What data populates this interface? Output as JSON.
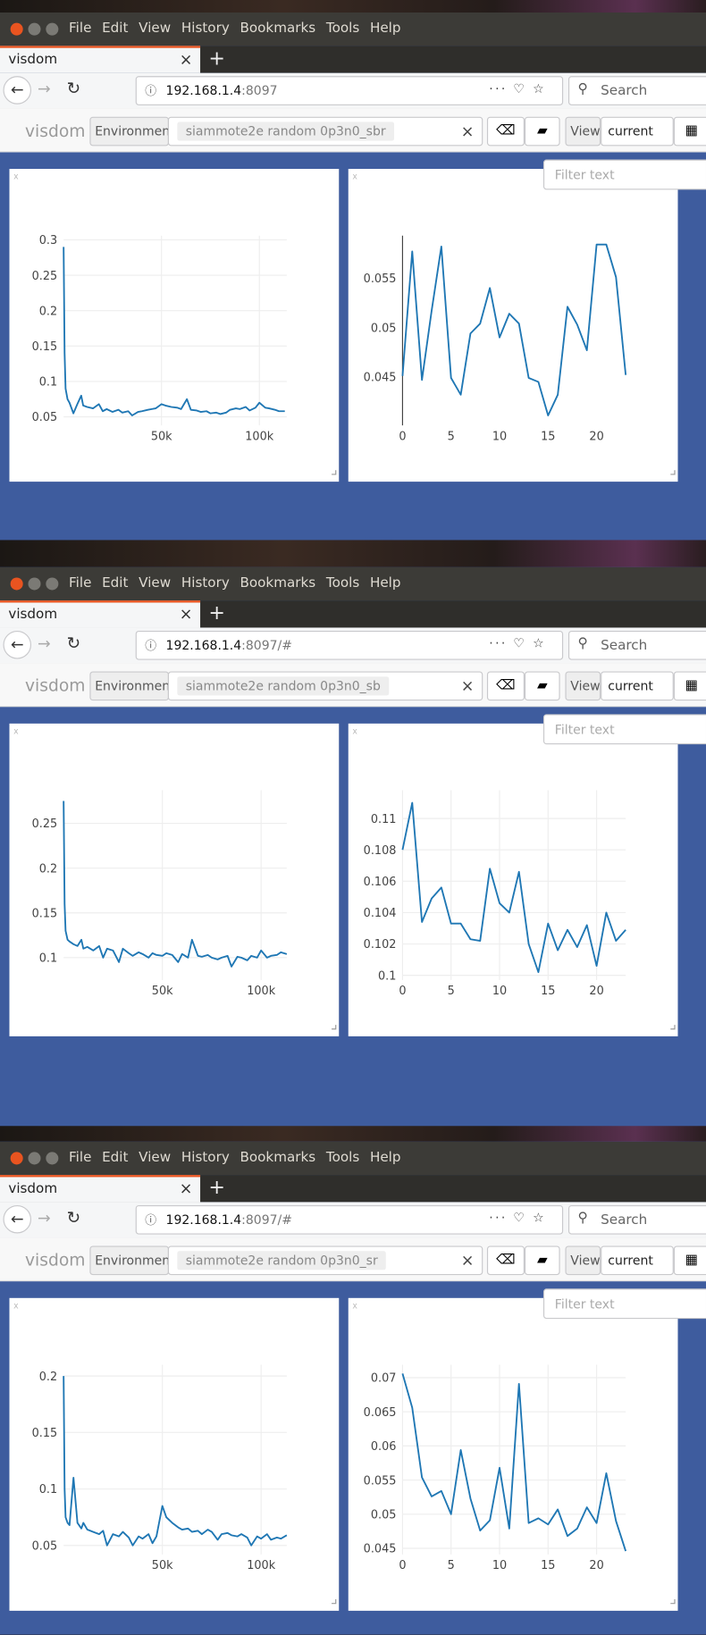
{
  "windows": [
    {
      "menu": [
        "File",
        "Edit",
        "View",
        "History",
        "Bookmarks",
        "Tools",
        "Help"
      ],
      "tab": "visdom",
      "url_host": "192.168.1.4",
      "url_rest": ":8097",
      "search": "Search",
      "brand": "visdom",
      "env_label": "Environment",
      "env_value": "siammote2e random 0p3n0_sbr",
      "view_label": "View",
      "view_value": "current",
      "filter": "Filter text",
      "charts": [
        {
          "type": "line",
          "color": "#1f77b4",
          "grid": true,
          "x": [
            0,
            500,
            1000,
            2000,
            3000,
            5000,
            7000,
            9000,
            10000,
            12000,
            15000,
            18000,
            20000,
            22000,
            25000,
            28000,
            30000,
            33000,
            35000,
            38000,
            40000,
            43000,
            45000,
            47000,
            50000,
            52000,
            55000,
            58000,
            60000,
            63000,
            65000,
            68000,
            70000,
            73000,
            75000,
            78000,
            80000,
            83000,
            85000,
            88000,
            90000,
            93000,
            95000,
            98000,
            100000,
            103000,
            105000,
            108000,
            110000,
            113000
          ],
          "values": [
            0.29,
            0.14,
            0.09,
            0.075,
            0.07,
            0.055,
            0.068,
            0.08,
            0.066,
            0.064,
            0.062,
            0.068,
            0.058,
            0.061,
            0.057,
            0.06,
            0.056,
            0.058,
            0.052,
            0.057,
            0.058,
            0.06,
            0.061,
            0.062,
            0.068,
            0.066,
            0.064,
            0.063,
            0.061,
            0.075,
            0.06,
            0.059,
            0.057,
            0.058,
            0.055,
            0.056,
            0.054,
            0.056,
            0.06,
            0.062,
            0.061,
            0.064,
            0.059,
            0.063,
            0.07,
            0.063,
            0.062,
            0.06,
            0.058,
            0.058
          ],
          "xlim": [
            0,
            114000
          ],
          "xticks": [
            {
              "value": 50000,
              "label": "50k"
            },
            {
              "value": 100000,
              "label": "100k"
            }
          ],
          "ylim": [
            0.038,
            0.306
          ],
          "yticks": [
            0.05,
            0.1,
            0.15,
            0.2,
            0.25,
            0.3
          ]
        },
        {
          "type": "line",
          "color": "#1f77b4",
          "grid": false,
          "x": [
            0,
            1,
            2,
            3,
            4,
            5,
            6,
            7,
            8,
            9,
            10,
            11,
            12,
            13,
            14,
            15,
            16,
            17,
            18,
            19,
            20,
            21,
            22,
            23
          ],
          "values": [
            0.0451,
            0.0577,
            0.0447,
            0.0517,
            0.0582,
            0.0449,
            0.0432,
            0.0494,
            0.0504,
            0.054,
            0.049,
            0.0514,
            0.0504,
            0.0449,
            0.0445,
            0.0411,
            0.0432,
            0.0521,
            0.0503,
            0.0477,
            0.0584,
            0.0584,
            0.0551,
            0.0452
          ],
          "xlim": [
            0,
            23
          ],
          "xticks": [
            0,
            5,
            10,
            15,
            20
          ],
          "ylim": [
            0.0401,
            0.0593
          ],
          "yticks": [
            0.045,
            0.05,
            0.055
          ]
        }
      ]
    },
    {
      "menu": [
        "File",
        "Edit",
        "View",
        "History",
        "Bookmarks",
        "Tools",
        "Help"
      ],
      "tab": "visdom",
      "url_host": "192.168.1.4",
      "url_rest": ":8097/#",
      "search": "Search",
      "brand": "visdom",
      "env_label": "Environment",
      "env_value": "siammote2e random 0p3n0_sb",
      "view_label": "View",
      "view_value": "current",
      "filter": "Filter text",
      "charts": [
        {
          "type": "line",
          "color": "#1f77b4",
          "grid": true,
          "x": [
            0,
            500,
            1000,
            2000,
            3000,
            5000,
            7000,
            9000,
            10000,
            12000,
            15000,
            18000,
            20000,
            22000,
            25000,
            28000,
            30000,
            33000,
            35000,
            38000,
            40000,
            43000,
            45000,
            47000,
            50000,
            52000,
            55000,
            58000,
            60000,
            63000,
            65000,
            68000,
            70000,
            73000,
            75000,
            78000,
            80000,
            83000,
            85000,
            88000,
            90000,
            93000,
            95000,
            98000,
            100000,
            103000,
            105000,
            108000,
            110000,
            113000
          ],
          "values": [
            0.275,
            0.16,
            0.13,
            0.12,
            0.118,
            0.115,
            0.113,
            0.12,
            0.11,
            0.112,
            0.108,
            0.113,
            0.1,
            0.11,
            0.108,
            0.095,
            0.11,
            0.105,
            0.102,
            0.106,
            0.104,
            0.1,
            0.105,
            0.103,
            0.102,
            0.105,
            0.103,
            0.095,
            0.104,
            0.1,
            0.12,
            0.102,
            0.101,
            0.103,
            0.1,
            0.098,
            0.1,
            0.102,
            0.09,
            0.101,
            0.1,
            0.097,
            0.102,
            0.1,
            0.108,
            0.1,
            0.102,
            0.103,
            0.106,
            0.104
          ],
          "xlim": [
            0,
            113000
          ],
          "xticks": [
            {
              "value": 50000,
              "label": "50k"
            },
            {
              "value": 100000,
              "label": "100k"
            }
          ],
          "ylim": [
            0.075,
            0.287
          ],
          "yticks": [
            0.1,
            0.15,
            0.2,
            0.25
          ]
        },
        {
          "type": "line",
          "color": "#1f77b4",
          "grid": true,
          "x": [
            0,
            1,
            2,
            3,
            4,
            5,
            6,
            7,
            8,
            9,
            10,
            11,
            12,
            13,
            14,
            15,
            16,
            17,
            18,
            19,
            20,
            21,
            22,
            23
          ],
          "values": [
            0.108,
            0.111,
            0.1034,
            0.1049,
            0.1056,
            0.1033,
            0.1033,
            0.1023,
            0.1022,
            0.1068,
            0.1046,
            0.104,
            0.1066,
            0.102,
            0.1002,
            0.1033,
            0.1016,
            0.1029,
            0.1018,
            0.1032,
            0.1006,
            0.104,
            0.1022,
            0.1029
          ],
          "xlim": [
            0,
            23
          ],
          "xticks": [
            0,
            5,
            10,
            15,
            20
          ],
          "ylim": [
            0.0997,
            0.1118
          ],
          "yticks": [
            0.1,
            0.102,
            0.104,
            0.106,
            0.108,
            0.11
          ]
        }
      ]
    },
    {
      "menu": [
        "File",
        "Edit",
        "View",
        "History",
        "Bookmarks",
        "Tools",
        "Help"
      ],
      "tab": "visdom",
      "url_host": "192.168.1.4",
      "url_rest": ":8097/#",
      "search": "Search",
      "brand": "visdom",
      "env_label": "Environment",
      "env_value": "siammote2e random 0p3n0_sr",
      "view_label": "View",
      "view_value": "current",
      "filter": "Filter text",
      "charts": [
        {
          "type": "line",
          "color": "#1f77b4",
          "grid": true,
          "x": [
            0,
            500,
            1000,
            2000,
            3000,
            5000,
            7000,
            9000,
            10000,
            12000,
            15000,
            18000,
            20000,
            22000,
            25000,
            28000,
            30000,
            33000,
            35000,
            38000,
            40000,
            43000,
            45000,
            47000,
            50000,
            52000,
            55000,
            58000,
            60000,
            63000,
            65000,
            68000,
            70000,
            73000,
            75000,
            78000,
            80000,
            83000,
            85000,
            88000,
            90000,
            93000,
            95000,
            98000,
            100000,
            103000,
            105000,
            108000,
            110000,
            113000
          ],
          "values": [
            0.2,
            0.1,
            0.075,
            0.07,
            0.068,
            0.11,
            0.07,
            0.065,
            0.07,
            0.064,
            0.062,
            0.06,
            0.063,
            0.05,
            0.06,
            0.058,
            0.062,
            0.057,
            0.05,
            0.058,
            0.056,
            0.06,
            0.052,
            0.058,
            0.085,
            0.075,
            0.07,
            0.066,
            0.064,
            0.065,
            0.062,
            0.063,
            0.06,
            0.064,
            0.062,
            0.055,
            0.06,
            0.061,
            0.059,
            0.058,
            0.06,
            0.057,
            0.05,
            0.058,
            0.056,
            0.06,
            0.055,
            0.057,
            0.056,
            0.059
          ],
          "xlim": [
            0,
            113000
          ],
          "xticks": [
            {
              "value": 50000,
              "label": "50k"
            },
            {
              "value": 100000,
              "label": "100k"
            }
          ],
          "ylim": [
            0.042,
            0.21
          ],
          "yticks": [
            0.05,
            0.1,
            0.15,
            0.2
          ]
        },
        {
          "type": "line",
          "color": "#1f77b4",
          "grid": true,
          "x": [
            0,
            1,
            2,
            3,
            4,
            5,
            6,
            7,
            8,
            9,
            10,
            11,
            12,
            13,
            14,
            15,
            16,
            17,
            18,
            19,
            20,
            21,
            22,
            23
          ],
          "values": [
            0.0706,
            0.0656,
            0.0554,
            0.0526,
            0.0534,
            0.05,
            0.0594,
            0.0523,
            0.0476,
            0.0491,
            0.0568,
            0.0479,
            0.0691,
            0.0487,
            0.0494,
            0.0485,
            0.0507,
            0.0468,
            0.0479,
            0.051,
            0.0487,
            0.056,
            0.049,
            0.0446
          ],
          "xlim": [
            0,
            23
          ],
          "xticks": [
            0,
            5,
            10,
            15,
            20
          ],
          "ylim": [
            0.0441,
            0.0719
          ],
          "yticks": [
            0.045,
            0.05,
            0.055,
            0.06,
            0.065,
            0.07
          ]
        }
      ]
    }
  ]
}
